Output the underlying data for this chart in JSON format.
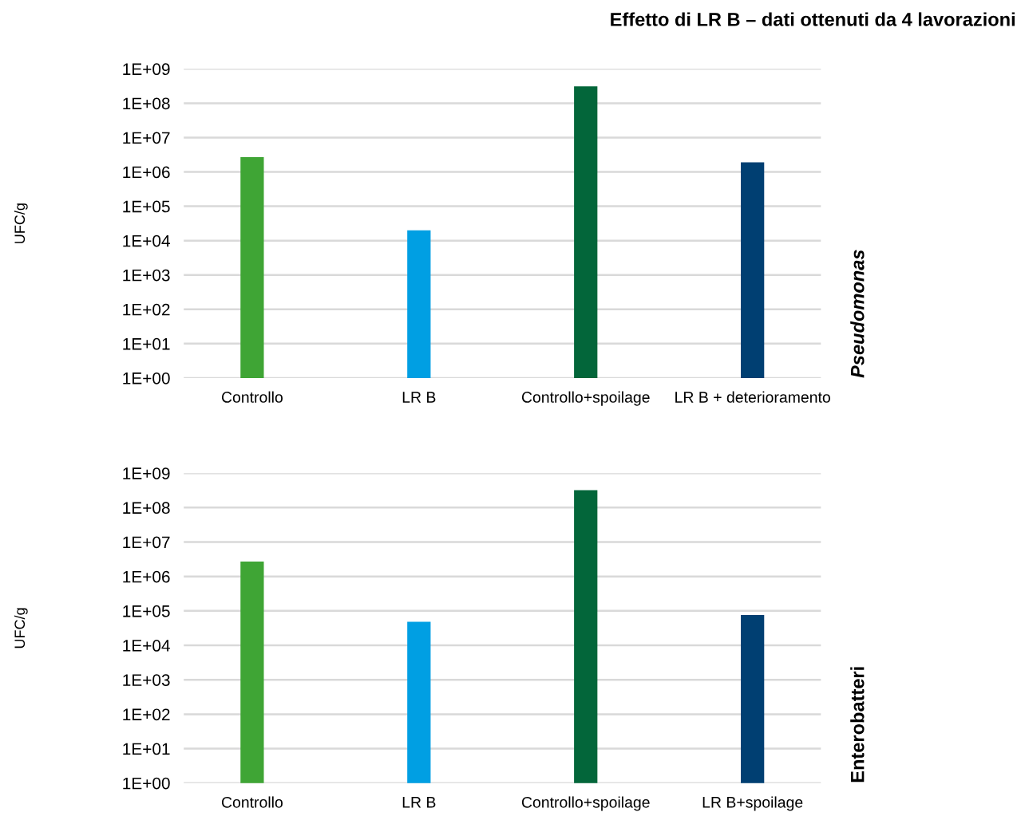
{
  "chart_data": [
    {
      "type": "bar",
      "title": "Effetto di LR B – dati ottenuti da 4 lavorazioni",
      "ylabel": "UFC/g",
      "annotations": [
        "Pseudomonas"
      ],
      "categories": [
        "Controllo",
        "LR B",
        "Controllo+spoilage",
        "LR B + deterioramento"
      ],
      "values": [
        2700000.0,
        20000.0,
        310000000.0,
        1900000.0
      ],
      "colors": [
        "#3fa535",
        "#009fe3",
        "#03663a",
        "#003f72"
      ],
      "log": true,
      "ylim": [
        1,
        1000000000.0
      ],
      "yticks": [
        {
          "value": 1,
          "label": "1E+00"
        },
        {
          "value": 10,
          "label": "1E+01"
        },
        {
          "value": 100,
          "label": "1E+02"
        },
        {
          "value": 1000,
          "label": "1E+03"
        },
        {
          "value": 10000.0,
          "label": "1E+04"
        },
        {
          "value": 100000.0,
          "label": "1E+05"
        },
        {
          "value": 1000000.0,
          "label": "1E+06"
        },
        {
          "value": 10000000.0,
          "label": "1E+07"
        },
        {
          "value": 100000000.0,
          "label": "1E+08"
        },
        {
          "value": 1000000000.0,
          "label": "1E+09"
        }
      ],
      "grid": "y"
    },
    {
      "type": "bar",
      "ylabel": "UFC/g",
      "annotations": [
        "Enterobatteri"
      ],
      "categories": [
        "Controllo",
        "LR B",
        "Controllo+spoilage",
        "LR B+spoilage"
      ],
      "values": [
        2700000.0,
        48000.0,
        320000000.0,
        76000.0
      ],
      "colors": [
        "#3fa535",
        "#009fe3",
        "#03663a",
        "#003f72"
      ],
      "log": true,
      "ylim": [
        1,
        1000000000.0
      ],
      "yticks": [
        {
          "value": 1,
          "label": "1E+00"
        },
        {
          "value": 10,
          "label": "1E+01"
        },
        {
          "value": 100,
          "label": "1E+02"
        },
        {
          "value": 1000,
          "label": "1E+03"
        },
        {
          "value": 10000.0,
          "label": "1E+04"
        },
        {
          "value": 100000.0,
          "label": "1E+05"
        },
        {
          "value": 1000000.0,
          "label": "1E+06"
        },
        {
          "value": 10000000.0,
          "label": "1E+07"
        },
        {
          "value": 100000000.0,
          "label": "1E+08"
        },
        {
          "value": 1000000000.0,
          "label": "1E+09"
        }
      ],
      "grid": "y"
    }
  ]
}
